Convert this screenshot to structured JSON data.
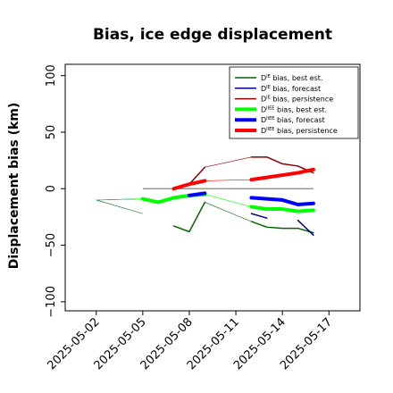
{
  "chart_data": {
    "type": "line",
    "title": "Bias, ice edge displacement",
    "ylabel": "Displacement bias (km)",
    "xlabel": "",
    "ylim": [
      -108,
      110
    ],
    "y_ticks": [
      -100,
      -50,
      0,
      50,
      100
    ],
    "xlim": [
      "2025-04-30",
      "2025-05-19"
    ],
    "x_ticks": [
      "2025-05-02",
      "2025-05-05",
      "2025-05-08",
      "2025-05-11",
      "2025-05-14",
      "2025-05-17"
    ],
    "highlighted_x_tick": "2025-05-08",
    "highlight_color": "#228b22",
    "zero_line": {
      "y": 0,
      "x_start": "2025-05-05",
      "x_end": "2025-05-16",
      "color": "#808080"
    },
    "legend_position": "top-right",
    "series": [
      {
        "name": "D bias, best est.",
        "name_prefix": "D",
        "name_sup": "IE",
        "name_suffix": " bias, best est.",
        "color": "#006400",
        "width": "thin",
        "x": [
          "2025-05-05",
          "2025-05-07",
          "2025-05-08",
          "2025-05-09",
          "2025-05-12",
          "2025-05-13",
          "2025-05-14",
          "2025-05-15",
          "2025-05-16"
        ],
        "y": [
          -22,
          -33,
          -38,
          -12,
          -29,
          -34,
          -35,
          -35,
          -39
        ]
      },
      {
        "name": "D bias, forecast",
        "name_prefix": "D",
        "name_sup": "IE",
        "name_suffix": " bias, forecast",
        "color": "#00008b",
        "width": "thin",
        "x": [
          "2025-05-09",
          "2025-05-12",
          "2025-05-13",
          "2025-05-15",
          "2025-05-16"
        ],
        "y": [
          -12,
          -22,
          -26,
          -28,
          -41
        ]
      },
      {
        "name": "D bias, persistence",
        "name_prefix": "D",
        "name_sup": "IE",
        "name_suffix": " bias, persistence",
        "color": "#8b0000",
        "width": "thin",
        "x": [
          "2025-05-08",
          "2025-05-09",
          "2025-05-12",
          "2025-05-13",
          "2025-05-14",
          "2025-05-15",
          "2025-05-16"
        ],
        "y": [
          4,
          19,
          28,
          28,
          22,
          20,
          14
        ]
      },
      {
        "name": "D bias, best est.",
        "name_prefix": "D",
        "name_sup": "IIEE",
        "name_suffix": " bias, best est.",
        "color": "#00ff00",
        "width": "thick",
        "x": [
          "2025-05-05",
          "2025-05-06",
          "2025-05-07",
          "2025-05-08",
          "2025-05-09",
          "2025-05-12",
          "2025-05-13",
          "2025-05-14",
          "2025-05-15",
          "2025-05-16"
        ],
        "y": [
          -9,
          -12,
          -8,
          -6,
          -5,
          -16,
          -18,
          -18,
          -20,
          -19
        ]
      },
      {
        "name": "D bias, forecast",
        "name_prefix": "D",
        "name_sup": "IIEE",
        "name_suffix": " bias, forecast",
        "color": "#0000ff",
        "width": "thick",
        "x": [
          "2025-05-08",
          "2025-05-09",
          "2025-05-12",
          "2025-05-13",
          "2025-05-14",
          "2025-05-15",
          "2025-05-16"
        ],
        "y": [
          -6,
          -4,
          -8,
          -9,
          -10,
          -14,
          -13
        ]
      },
      {
        "name": "D bias, persistence",
        "name_prefix": "D",
        "name_sup": "IIEE",
        "name_suffix": " bias, persistence",
        "color": "#ff0000",
        "width": "thick",
        "x": [
          "2025-05-07",
          "2025-05-08",
          "2025-05-09",
          "2025-05-12",
          "2025-05-13",
          "2025-05-14",
          "2025-05-15",
          "2025-05-16"
        ],
        "y": [
          0,
          4,
          7,
          8,
          10,
          12,
          14,
          17
        ]
      }
    ],
    "connector_segments": [
      {
        "color": "#006400",
        "x": [
          "2025-05-02",
          "2025-05-05"
        ],
        "y": [
          -10,
          -22
        ]
      },
      {
        "color": "#006400",
        "x": [
          "2025-05-09",
          "2025-05-12"
        ],
        "y": [
          -12,
          -29
        ]
      },
      {
        "color": "#00008b",
        "x": [
          "2025-05-02",
          "2025-05-05"
        ],
        "y": [
          -10,
          -9
        ]
      },
      {
        "color": "#8b0000",
        "x": [
          "2025-05-09",
          "2025-05-12"
        ],
        "y": [
          19,
          28
        ]
      },
      {
        "color": "#00ff00",
        "x": [
          "2025-05-02",
          "2025-05-05"
        ],
        "y": [
          -10,
          -9
        ]
      },
      {
        "color": "#00ff00",
        "x": [
          "2025-05-09",
          "2025-05-12"
        ],
        "y": [
          -5,
          -16
        ]
      },
      {
        "color": "#ff0000",
        "x": [
          "2025-05-09",
          "2025-05-12"
        ],
        "y": [
          7,
          8
        ]
      }
    ]
  }
}
